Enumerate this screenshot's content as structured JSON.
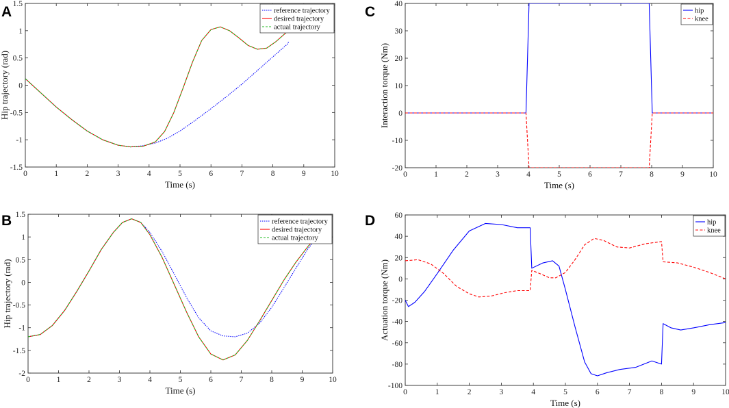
{
  "chart_data": [
    {
      "panel": "A",
      "type": "line",
      "xlabel": "Time (s)",
      "ylabel": "Hip trajectory (rad)",
      "xlim": [
        0,
        10
      ],
      "ylim": [
        -1.5,
        1.5
      ],
      "xticks": [
        0,
        1,
        2,
        3,
        4,
        5,
        6,
        7,
        8,
        9,
        10
      ],
      "yticks": [
        -1.5,
        -1,
        -0.5,
        0,
        0.5,
        1,
        1.5
      ],
      "legend": "top-right",
      "series": [
        {
          "name": "reference trajectory",
          "color": "#0000ff",
          "dash": "1.5,1.5",
          "x": [
            0,
            0.5,
            1,
            1.5,
            2,
            2.5,
            3,
            3.4,
            3.8,
            4.2,
            4.6,
            5,
            5.5,
            6,
            6.5,
            7,
            7.5,
            8,
            8.5,
            8.5
          ],
          "y": [
            0.12,
            -0.14,
            -0.4,
            -0.63,
            -0.84,
            -1.0,
            -1.1,
            -1.13,
            -1.11,
            -1.06,
            -0.97,
            -0.84,
            -0.64,
            -0.43,
            -0.21,
            0.02,
            0.27,
            0.52,
            0.77,
            0.8
          ]
        },
        {
          "name": "desired trajectory",
          "color": "#ff0000",
          "dash": "",
          "x": [
            0,
            0.5,
            1,
            1.5,
            2,
            2.5,
            3,
            3.4,
            3.8,
            4.2,
            4.5,
            4.8,
            5.1,
            5.4,
            5.7,
            6,
            6.3,
            6.6,
            6.9,
            7.2,
            7.5,
            7.8,
            8.1,
            8.5
          ],
          "y": [
            0.12,
            -0.14,
            -0.4,
            -0.63,
            -0.84,
            -1.0,
            -1.1,
            -1.13,
            -1.12,
            -1.04,
            -0.85,
            -0.5,
            -0.05,
            0.42,
            0.82,
            1.02,
            1.07,
            1.0,
            0.87,
            0.73,
            0.66,
            0.68,
            0.8,
            1.0
          ]
        },
        {
          "name": "actual trajectory",
          "color": "#22bb22",
          "dash": "3,2",
          "x": [
            0,
            0.5,
            1,
            1.5,
            2,
            2.5,
            3,
            3.4,
            3.8,
            4.2,
            4.5,
            4.8,
            5.1,
            5.4,
            5.7,
            6,
            6.3,
            6.6,
            6.9,
            7.2,
            7.5,
            7.8,
            8.1,
            8.5
          ],
          "y": [
            0.12,
            -0.14,
            -0.4,
            -0.63,
            -0.84,
            -1.0,
            -1.1,
            -1.13,
            -1.12,
            -1.04,
            -0.85,
            -0.5,
            -0.05,
            0.42,
            0.82,
            1.02,
            1.07,
            1.0,
            0.87,
            0.73,
            0.66,
            0.68,
            0.8,
            1.0
          ]
        }
      ]
    },
    {
      "panel": "B",
      "type": "line",
      "xlabel": "Time (s)",
      "ylabel": "Hip trajectory (rad)",
      "xlim": [
        0,
        10
      ],
      "ylim": [
        -2,
        1.5
      ],
      "xticks": [
        0,
        1,
        2,
        3,
        4,
        5,
        6,
        7,
        8,
        9,
        10
      ],
      "yticks": [
        -2,
        -1.5,
        -1,
        -0.5,
        0,
        0.5,
        1,
        1.5
      ],
      "legend": "top-right",
      "series": [
        {
          "name": "reference trajectory",
          "color": "#0000ff",
          "dash": "1.5,1.5",
          "x": [
            0,
            0.4,
            0.8,
            1.2,
            1.6,
            2,
            2.4,
            2.8,
            3.1,
            3.4,
            3.7,
            4,
            4.4,
            4.8,
            5.2,
            5.6,
            6,
            6.4,
            6.8,
            7.2,
            7.6,
            8,
            8.4,
            8.8,
            9.2,
            9.5
          ],
          "y": [
            -1.2,
            -1.15,
            -0.95,
            -0.62,
            -0.2,
            0.25,
            0.72,
            1.1,
            1.32,
            1.4,
            1.32,
            1.1,
            0.68,
            0.18,
            -0.33,
            -0.78,
            -1.07,
            -1.18,
            -1.2,
            -1.12,
            -0.9,
            -0.55,
            -0.12,
            0.32,
            0.75,
            1.0
          ]
        },
        {
          "name": "desired trajectory",
          "color": "#ff0000",
          "dash": "",
          "x": [
            0,
            0.4,
            0.8,
            1.2,
            1.6,
            2,
            2.4,
            2.8,
            3.1,
            3.4,
            3.7,
            4,
            4.4,
            4.8,
            5.2,
            5.6,
            6,
            6.4,
            6.8,
            7.2,
            7.6,
            8,
            8.4,
            8.8,
            9.2,
            9.5
          ],
          "y": [
            -1.2,
            -1.15,
            -0.95,
            -0.62,
            -0.2,
            0.25,
            0.72,
            1.1,
            1.32,
            1.4,
            1.32,
            1.05,
            0.55,
            -0.05,
            -0.65,
            -1.2,
            -1.58,
            -1.71,
            -1.6,
            -1.28,
            -0.85,
            -0.4,
            0.05,
            0.45,
            0.8,
            1.0
          ]
        },
        {
          "name": "actual trajectory",
          "color": "#22bb22",
          "dash": "3,2",
          "x": [
            0,
            0.4,
            0.8,
            1.2,
            1.6,
            2,
            2.4,
            2.8,
            3.1,
            3.4,
            3.7,
            4,
            4.4,
            4.8,
            5.2,
            5.6,
            6,
            6.4,
            6.8,
            7.2,
            7.6,
            8,
            8.4,
            8.8,
            9.2,
            9.5
          ],
          "y": [
            -1.2,
            -1.15,
            -0.95,
            -0.62,
            -0.2,
            0.25,
            0.72,
            1.1,
            1.32,
            1.4,
            1.32,
            1.05,
            0.55,
            -0.05,
            -0.65,
            -1.2,
            -1.58,
            -1.71,
            -1.6,
            -1.28,
            -0.85,
            -0.4,
            0.05,
            0.45,
            0.8,
            1.0
          ]
        }
      ]
    },
    {
      "panel": "C",
      "type": "line",
      "xlabel": "Time (s)",
      "ylabel": "Interaction torque (Nm)",
      "xlim": [
        0,
        10
      ],
      "ylim": [
        -20,
        40
      ],
      "xticks": [
        0,
        1,
        2,
        3,
        4,
        5,
        6,
        7,
        8,
        9,
        10
      ],
      "yticks": [
        -20,
        -10,
        0,
        10,
        20,
        30,
        40
      ],
      "legend": "top-right",
      "series": [
        {
          "name": "hip",
          "color": "#0000ff",
          "dash": "",
          "x": [
            0,
            3.92,
            4.02,
            7.92,
            8.02,
            10
          ],
          "y": [
            0,
            0,
            40,
            40,
            0,
            0
          ]
        },
        {
          "name": "knee",
          "color": "#ff0000",
          "dash": "4,2.5",
          "x": [
            0,
            3.92,
            4.02,
            7.92,
            8.02,
            10
          ],
          "y": [
            0,
            0,
            -20,
            -20,
            0,
            0
          ]
        }
      ]
    },
    {
      "panel": "D",
      "type": "line",
      "xlabel": "Time (s)",
      "ylabel": "Actuation torque (Nm)",
      "xlim": [
        0,
        10
      ],
      "ylim": [
        -100,
        60
      ],
      "xticks": [
        0,
        1,
        2,
        3,
        4,
        5,
        6,
        7,
        8,
        9,
        10
      ],
      "yticks": [
        -100,
        -80,
        -60,
        -40,
        -20,
        0,
        20,
        40,
        60
      ],
      "legend": "top-right",
      "series": [
        {
          "name": "hip",
          "color": "#0000ff",
          "dash": "",
          "x": [
            0,
            0.1,
            0.3,
            0.6,
            1,
            1.5,
            2,
            2.5,
            3,
            3.5,
            3.9,
            3.95,
            4.3,
            4.6,
            4.8,
            5,
            5.3,
            5.6,
            5.8,
            6,
            6.3,
            6.7,
            7.2,
            7.7,
            8,
            8.05,
            8.3,
            8.6,
            9,
            9.5,
            10
          ],
          "y": [
            -20,
            -26,
            -22,
            -12,
            5,
            27,
            45,
            52,
            51,
            48,
            48,
            10,
            15,
            17,
            12,
            -10,
            -45,
            -78,
            -89,
            -91,
            -88,
            -85,
            -83,
            -77,
            -80,
            -42,
            -46,
            -48,
            -46,
            -43,
            -41
          ]
        },
        {
          "name": "knee",
          "color": "#ff0000",
          "dash": "4,2.5",
          "x": [
            0,
            0.4,
            0.8,
            1.2,
            1.6,
            2,
            2.3,
            2.7,
            3.1,
            3.5,
            3.9,
            3.95,
            4.2,
            4.5,
            4.7,
            5,
            5.3,
            5.6,
            5.9,
            6.2,
            6.6,
            7,
            7.5,
            8,
            8.05,
            8.5,
            9,
            9.5,
            10
          ],
          "y": [
            17,
            18,
            14,
            5,
            -7,
            -14,
            -17,
            -16,
            -13,
            -11,
            -11,
            8,
            5,
            1,
            1,
            6,
            18,
            32,
            38,
            36,
            30,
            29,
            33,
            35,
            16,
            15,
            11,
            6,
            0
          ]
        }
      ]
    }
  ]
}
